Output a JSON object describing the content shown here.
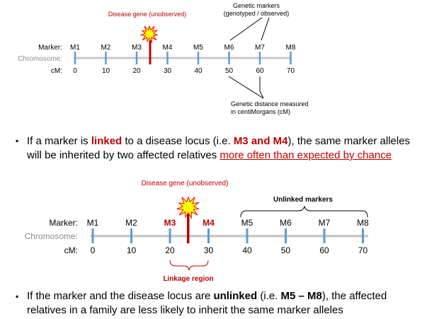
{
  "diagram1": {
    "disease_label": "Disease gene (unobserved)",
    "markers_label_line1": "Genetic markers",
    "markers_label_line2": "(genotyped / observed)",
    "row_marker": "Marker:",
    "row_chromosome": "Chromosome:",
    "row_cm": "cM:",
    "markers": [
      "M1",
      "M2",
      "M3",
      "M4",
      "M5",
      "M6",
      "M7",
      "M8"
    ],
    "positions": [
      "0",
      "10",
      "20",
      "30",
      "40",
      "50",
      "60",
      "70"
    ],
    "distance_label_line1": "Genetic distance measured",
    "distance_label_line2": "in centiMorgans (cM)"
  },
  "bullet1": {
    "text_a": "If a marker is ",
    "linked": "linked",
    "text_b": " to a disease locus (i.e. ",
    "m3m4": "M3 and M4",
    "text_c": "), the same marker alleles",
    "line2_a": "will be inherited by two affected relatives ",
    "line2_link": "more often than expected by chance"
  },
  "diagram2": {
    "disease_label": "Disease gene (unobserved)",
    "unlinked_label": "Unlinked markers",
    "row_marker": "Marker:",
    "row_chromosome": "Chromosome:",
    "row_cm": "cM:",
    "markers": [
      "M1",
      "M2",
      "M3",
      "M4",
      "M5",
      "M6",
      "M7",
      "M8"
    ],
    "positions": [
      "0",
      "10",
      "20",
      "30",
      "40",
      "50",
      "60",
      "70"
    ],
    "linkage_label": "Linkage region"
  },
  "bullet2": {
    "text_a": "If the marker and the disease locus are ",
    "unlinked": "unlinked",
    "text_b": " (i.e. ",
    "m5m8": "M5 – M8",
    "text_c": "), the affected",
    "line2": "relatives in a family are less likely to inherit the same marker alleles"
  },
  "colors": {
    "red": "#c00000",
    "blue_tick": "#5b9bd5",
    "chromosome_bar": "#c8c8c8",
    "gray_label": "#8c8c8c",
    "star_fill": "#ffff00",
    "star_stroke": "#ff0000"
  }
}
